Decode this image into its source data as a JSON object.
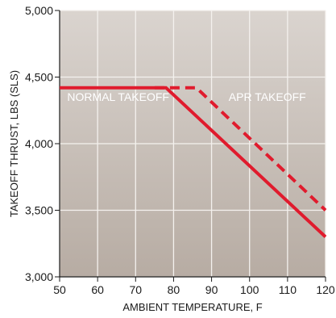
{
  "chart_data": {
    "type": "line",
    "xlabel": "AMBIENT TEMPERATURE, F",
    "ylabel": "TAKEOFF THRUST, LBS (SLS)",
    "xlim": [
      50,
      120
    ],
    "ylim": [
      3000,
      5000
    ],
    "x_ticks": [
      50,
      60,
      70,
      80,
      90,
      100,
      110,
      120
    ],
    "y_ticks": [
      3000,
      3500,
      4000,
      4500,
      5000
    ],
    "x_tick_labels": [
      "50",
      "60",
      "70",
      "80",
      "90",
      "100",
      "110",
      "120"
    ],
    "y_tick_labels": [
      "3,000",
      "3,500",
      "4,000",
      "4,500",
      "5,000"
    ],
    "grid": true,
    "series": [
      {
        "style": "solid",
        "color": "#e01b2d",
        "points": [
          [
            50,
            4420
          ],
          [
            78,
            4420
          ],
          [
            120,
            3300
          ]
        ]
      },
      {
        "style": "dashed",
        "color": "#e01b2d",
        "points": [
          [
            75,
            4420
          ],
          [
            86,
            4420
          ],
          [
            120,
            3500
          ]
        ]
      }
    ],
    "annotations": [
      {
        "text": "NORMAL TAKEOFF",
        "x": 52,
        "y": 4320
      },
      {
        "text": "APR TAKEOFF",
        "x": 94.5,
        "y": 4320
      }
    ],
    "background_colors": [
      "#dad4cf",
      "#b7aca3"
    ]
  }
}
